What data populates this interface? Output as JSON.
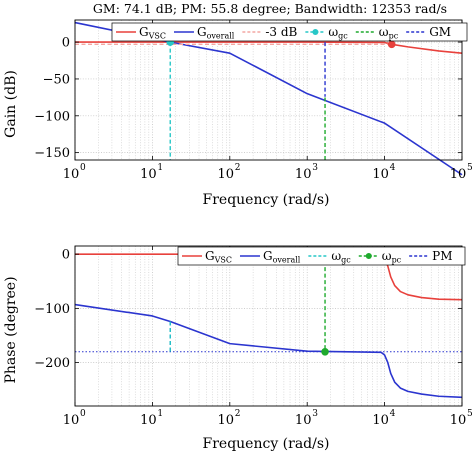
{
  "chart_data": [
    {
      "type": "line",
      "title": "GM: 74.1 dB; PM: 55.8 degree; Bandwidth: 12353 rad/s",
      "xlabel": "Frequency (rad/s)",
      "ylabel": "Gain (dB)",
      "xscale": "log",
      "xlim": [
        1,
        100000
      ],
      "ylim": [
        -160,
        30
      ],
      "x_tick_values": [
        1,
        10,
        100,
        1000,
        10000,
        100000
      ],
      "x_tick_labels": [
        {
          "base": "10",
          "exp": "0"
        },
        {
          "base": "10",
          "exp": "1"
        },
        {
          "base": "10",
          "exp": "2"
        },
        {
          "base": "10",
          "exp": "3"
        },
        {
          "base": "10",
          "exp": "4"
        },
        {
          "base": "10",
          "exp": "5"
        }
      ],
      "y_ticks": [
        0,
        -50,
        -100,
        -150
      ],
      "y_tick_labels": [
        "0",
        "−50",
        "−100",
        "−150"
      ],
      "grid": true,
      "legend": {
        "position": "top",
        "entries": [
          {
            "main": "G",
            "sub": "VSC",
            "color": "#e8413c",
            "dash": "solid"
          },
          {
            "main": "G",
            "sub": "overall",
            "color": "#2b35cf",
            "dash": "solid"
          },
          {
            "main": "-3 dB",
            "sub": "",
            "color": "#f4a7a3",
            "dash": "dashed"
          },
          {
            "main": "ω",
            "sub": "gc",
            "color": "#27c7c7",
            "dash": "dashed",
            "marker": true
          },
          {
            "main": "ω",
            "sub": "pc",
            "color": "#1faa2e",
            "dash": "dashed"
          },
          {
            "main": "GM",
            "sub": "",
            "color": "#2b35cf",
            "dash": "dashed"
          }
        ]
      },
      "series": [
        {
          "key": "g_vsc",
          "color": "#e8413c",
          "width": 1.6,
          "dash": "solid",
          "x": [
            1,
            1000,
            10000,
            12353,
            20000,
            50000,
            100000
          ],
          "y": [
            0,
            0,
            -0.5,
            -3,
            -6.5,
            -12,
            -15
          ]
        },
        {
          "key": "g_overall",
          "color": "#2b35cf",
          "width": 1.6,
          "dash": "solid",
          "x": [
            1,
            17,
            100,
            1000,
            10000,
            100000
          ],
          "y": [
            26.5,
            0,
            -15,
            -70,
            -110,
            -180
          ]
        },
        {
          "key": "minus_3db",
          "color": "#f4a7a3",
          "width": 1.4,
          "dash": "dashed",
          "x": [
            1,
            12353
          ],
          "y": [
            -3,
            -3
          ]
        },
        {
          "key": "wgc_line",
          "color": "#27c7c7",
          "width": 1.4,
          "dash": "dashed",
          "x": [
            17,
            17
          ],
          "y": [
            0,
            -160
          ]
        },
        {
          "key": "wpc_line",
          "color": "#1faa2e",
          "width": 1.4,
          "dash": "dashed",
          "x": [
            1700,
            1700
          ],
          "y": [
            -160,
            -74.1
          ]
        },
        {
          "key": "gm_line",
          "color": "#2b35cf",
          "width": 1.4,
          "dash": "dashed",
          "x": [
            1700,
            1700
          ],
          "y": [
            0,
            -74.1
          ]
        }
      ],
      "markers": [
        {
          "x": 17,
          "y": 0,
          "color": "#27c7c7"
        },
        {
          "x": 12353,
          "y": -3,
          "color": "#e8413c"
        }
      ]
    },
    {
      "type": "line",
      "title": "",
      "xlabel": "Frequency (rad/s)",
      "ylabel": "Phase (degree)",
      "xscale": "log",
      "xlim": [
        1,
        100000
      ],
      "ylim": [
        -280,
        15
      ],
      "x_tick_values": [
        1,
        10,
        100,
        1000,
        10000,
        100000
      ],
      "x_tick_labels": [
        {
          "base": "10",
          "exp": "0"
        },
        {
          "base": "10",
          "exp": "1"
        },
        {
          "base": "10",
          "exp": "2"
        },
        {
          "base": "10",
          "exp": "3"
        },
        {
          "base": "10",
          "exp": "4"
        },
        {
          "base": "10",
          "exp": "5"
        }
      ],
      "y_ticks": [
        0,
        -100,
        -200
      ],
      "y_tick_labels": [
        "0",
        "−100",
        "−200"
      ],
      "grid": true,
      "legend": {
        "position": "top-right",
        "entries": [
          {
            "main": "G",
            "sub": "VSC",
            "color": "#e8413c",
            "dash": "solid"
          },
          {
            "main": "G",
            "sub": "overall",
            "color": "#2b35cf",
            "dash": "solid"
          },
          {
            "main": "ω",
            "sub": "gc",
            "color": "#27c7c7",
            "dash": "dashed"
          },
          {
            "main": "ω",
            "sub": "pc",
            "color": "#1faa2e",
            "dash": "dashed",
            "marker": true
          },
          {
            "main": "PM",
            "sub": "",
            "color": "#2b35cf",
            "dash": "dashed"
          }
        ]
      },
      "series": [
        {
          "key": "phase_vsc",
          "color": "#e8413c",
          "width": 1.6,
          "dash": "solid",
          "x": [
            1,
            1000,
            9000,
            10000,
            11000,
            12000,
            13500,
            16000,
            20000,
            30000,
            50000,
            100000
          ],
          "y": [
            0,
            0,
            -2,
            -8,
            -22,
            -42,
            -58,
            -69,
            -75,
            -80,
            -83,
            -84
          ]
        },
        {
          "key": "phase_overall",
          "color": "#2b35cf",
          "width": 1.6,
          "dash": "solid",
          "x": [
            1,
            10,
            17,
            100,
            1000,
            9000,
            10000,
            11000,
            12000,
            13500,
            16000,
            20000,
            30000,
            50000,
            100000
          ],
          "y": [
            -93,
            -114,
            -124.2,
            -165,
            -179,
            -181,
            -186,
            -200,
            -220,
            -236,
            -247,
            -253,
            -258,
            -262,
            -264
          ]
        },
        {
          "key": "pm_hline",
          "color": "#2b35cf",
          "width": 1.0,
          "dash": "dotted",
          "x": [
            1,
            100000
          ],
          "y": [
            -180,
            -180
          ]
        },
        {
          "key": "pm_vline",
          "color": "#2b35cf",
          "width": 1.4,
          "dash": "dashed",
          "x": [
            17,
            17
          ],
          "y": [
            -124.2,
            -180
          ]
        },
        {
          "key": "wgc_line2",
          "color": "#27c7c7",
          "width": 1.4,
          "dash": "dashed",
          "x": [
            17,
            17
          ],
          "y": [
            -124.2,
            -180
          ]
        },
        {
          "key": "wpc_line2",
          "color": "#1faa2e",
          "width": 1.4,
          "dash": "dashed",
          "x": [
            1700,
            1700
          ],
          "y": [
            0,
            -180
          ]
        }
      ],
      "markers": [
        {
          "x": 1700,
          "y": -180,
          "color": "#1faa2e"
        }
      ]
    }
  ]
}
